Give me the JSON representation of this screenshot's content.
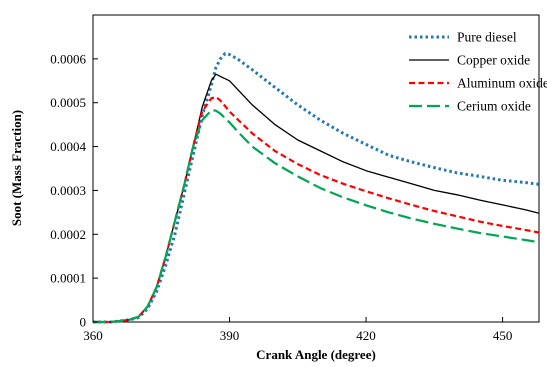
{
  "chart_data": {
    "type": "line",
    "xlabel": "Crank Angle (degree)",
    "ylabel": "Soot (Mass Fraction)",
    "xlim": [
      360,
      458
    ],
    "ylim": [
      0,
      0.0007
    ],
    "xticks": [
      360,
      390,
      420,
      450
    ],
    "xtick_labels": [
      "360",
      "390",
      "420",
      "450"
    ],
    "yticks": [
      0,
      0.0001,
      0.0002,
      0.0003,
      0.0004,
      0.0005,
      0.0006
    ],
    "ytick_labels": [
      "0",
      "0.0001",
      "0.0002",
      "0.0003",
      "0.0004",
      "0.0005",
      "0.0006"
    ],
    "grid": false,
    "legend_position": "top-right",
    "series": [
      {
        "name": "Pure diesel",
        "color": "#1f77b4",
        "dash": "dotted",
        "x": [
          360,
          364,
          368,
          370,
          372,
          374,
          376,
          378,
          380,
          382,
          384,
          386,
          387,
          388,
          389,
          390,
          392,
          395,
          400,
          405,
          410,
          415,
          420,
          425,
          430,
          435,
          440,
          445,
          450,
          455,
          458
        ],
        "y": [
          0,
          0,
          5e-06,
          1e-05,
          3e-05,
          7e-05,
          0.00013,
          0.0002,
          0.00029,
          0.00038,
          0.00047,
          0.00054,
          0.00058,
          0.0006,
          0.000612,
          0.00061,
          0.000598,
          0.000575,
          0.000535,
          0.000495,
          0.00046,
          0.00043,
          0.000405,
          0.00038,
          0.000365,
          0.000352,
          0.00034,
          0.000332,
          0.000323,
          0.000318,
          0.000314
        ]
      },
      {
        "name": "Copper oxide",
        "color": "#000000",
        "dash": "solid",
        "x": [
          360,
          364,
          368,
          370,
          372,
          374,
          376,
          378,
          380,
          382,
          384,
          386,
          387,
          388,
          390,
          392,
          395,
          400,
          405,
          410,
          415,
          420,
          425,
          430,
          435,
          440,
          445,
          450,
          455,
          458
        ],
        "y": [
          0,
          0,
          5e-06,
          1.2e-05,
          3.5e-05,
          8e-05,
          0.00015,
          0.00023,
          0.00031,
          0.0004,
          0.00049,
          0.00055,
          0.000565,
          0.00056,
          0.00055,
          0.000528,
          0.000495,
          0.00045,
          0.000415,
          0.00039,
          0.000365,
          0.000345,
          0.00033,
          0.000315,
          0.0003,
          0.00029,
          0.000278,
          0.000267,
          0.000256,
          0.000248
        ]
      },
      {
        "name": "Aluminum oxide",
        "color": "#ff0000",
        "dash": "dashed",
        "x": [
          360,
          364,
          368,
          370,
          372,
          374,
          376,
          378,
          380,
          382,
          384,
          386,
          387,
          388,
          390,
          392,
          395,
          400,
          405,
          410,
          415,
          420,
          425,
          430,
          435,
          440,
          445,
          450,
          455,
          458
        ],
        "y": [
          0,
          0,
          5e-06,
          1.2e-05,
          3.5e-05,
          8e-05,
          0.00015,
          0.00023,
          0.00031,
          0.0004,
          0.00048,
          0.00051,
          0.000513,
          0.000505,
          0.00048,
          0.00046,
          0.00043,
          0.00039,
          0.00036,
          0.000335,
          0.000315,
          0.000298,
          0.000282,
          0.000267,
          0.000253,
          0.000241,
          0.000229,
          0.000219,
          0.00021,
          0.000204
        ]
      },
      {
        "name": "Cerium oxide",
        "color": "#00a651",
        "dash": "long-dash",
        "x": [
          360,
          364,
          368,
          370,
          372,
          374,
          376,
          378,
          380,
          382,
          384,
          386,
          387,
          388,
          390,
          392,
          395,
          400,
          405,
          410,
          415,
          420,
          425,
          430,
          435,
          440,
          445,
          450,
          455,
          458
        ],
        "y": [
          0,
          0,
          5e-06,
          1.2e-05,
          3.5e-05,
          8e-05,
          0.00015,
          0.00023,
          0.00031,
          0.0004,
          0.00046,
          0.000483,
          0.000482,
          0.000475,
          0.000455,
          0.000432,
          0.0004,
          0.000362,
          0.000332,
          0.000305,
          0.000284,
          0.000266,
          0.00025,
          0.000236,
          0.000224,
          0.000213,
          0.000203,
          0.000195,
          0.000187,
          0.000182
        ]
      }
    ]
  }
}
